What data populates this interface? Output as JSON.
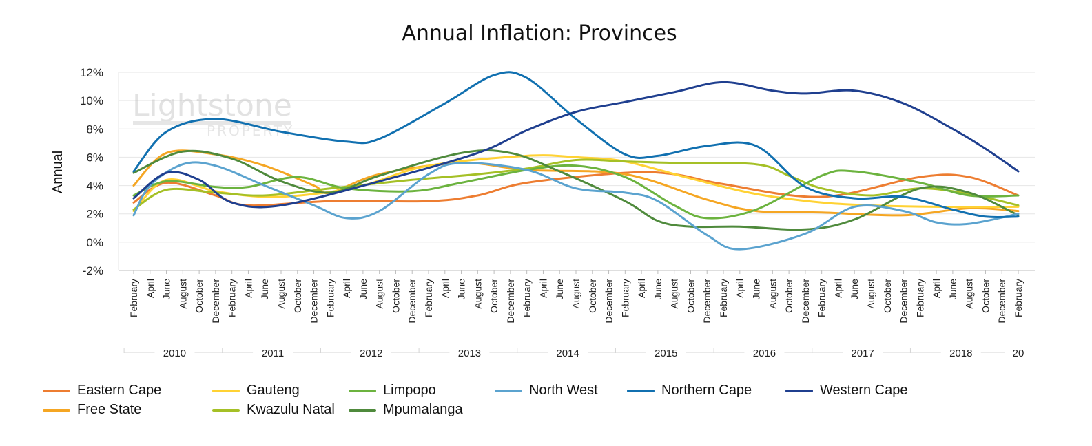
{
  "chart_data": {
    "type": "line",
    "title": "Annual Inflation: Provinces",
    "ylabel": "Annual",
    "xlabel": "",
    "ylim": [
      -2,
      12
    ],
    "y_ticks": [
      "12%",
      "10%",
      "8%",
      "6%",
      "4%",
      "2%",
      "0%",
      "-2%"
    ],
    "y_tick_values": [
      12,
      10,
      8,
      6,
      4,
      2,
      0,
      -2
    ],
    "grid": "horizontal",
    "legend_position": "bottom",
    "watermark": [
      "Lightstone",
      "PROPERTY"
    ],
    "x": [
      "February",
      "April",
      "June",
      "August",
      "October",
      "December",
      "February",
      "April",
      "June",
      "August",
      "October",
      "December",
      "February",
      "April",
      "June",
      "August",
      "October",
      "December",
      "February",
      "April",
      "June",
      "August",
      "October",
      "December",
      "February",
      "April",
      "June",
      "August",
      "October",
      "December",
      "February",
      "April",
      "June",
      "August",
      "October",
      "December",
      "February",
      "April",
      "June",
      "August",
      "October",
      "December",
      "February",
      "April",
      "June",
      "August",
      "October",
      "December",
      "February",
      "April",
      "June",
      "August",
      "October",
      "December",
      "February"
    ],
    "years": [
      {
        "label": "2010",
        "start": 0,
        "end": 5
      },
      {
        "label": "2011",
        "start": 6,
        "end": 11
      },
      {
        "label": "2012",
        "start": 12,
        "end": 17
      },
      {
        "label": "2013",
        "start": 18,
        "end": 23
      },
      {
        "label": "2014",
        "start": 24,
        "end": 29
      },
      {
        "label": "2015",
        "start": 30,
        "end": 35
      },
      {
        "label": "2016",
        "start": 36,
        "end": 41
      },
      {
        "label": "2017",
        "start": 42,
        "end": 47
      },
      {
        "label": "2018",
        "start": 48,
        "end": 53
      },
      {
        "label": "20",
        "start": 54,
        "end": 54
      }
    ],
    "series": [
      {
        "name": "Eastern Cape",
        "color": "#ED7D31",
        "points": [
          [
            0,
            2.8
          ],
          [
            2,
            4.2
          ],
          [
            5,
            3.3
          ],
          [
            7,
            2.6
          ],
          [
            12,
            2.9
          ],
          [
            18,
            2.9
          ],
          [
            21,
            3.3
          ],
          [
            24,
            4.2
          ],
          [
            30,
            4.9
          ],
          [
            33,
            4.8
          ],
          [
            36,
            4.1
          ],
          [
            42,
            3.2
          ],
          [
            48,
            4.6
          ],
          [
            51,
            4.6
          ],
          [
            54,
            3.3
          ]
        ]
      },
      {
        "name": "Free State",
        "color": "#F5A623",
        "points": [
          [
            0,
            4.0
          ],
          [
            2,
            6.3
          ],
          [
            5,
            6.2
          ],
          [
            8,
            5.4
          ],
          [
            11,
            4.0
          ],
          [
            12,
            3.5
          ],
          [
            15,
            4.8
          ],
          [
            20,
            5.6
          ],
          [
            24,
            5.1
          ],
          [
            30,
            4.8
          ],
          [
            35,
            3.0
          ],
          [
            38,
            2.2
          ],
          [
            42,
            2.1
          ],
          [
            47,
            1.9
          ],
          [
            51,
            2.4
          ],
          [
            54,
            2.2
          ]
        ]
      },
      {
        "name": "Gauteng",
        "color": "#FFD234",
        "points": [
          [
            0,
            2.2
          ],
          [
            2,
            4.4
          ],
          [
            5,
            3.6
          ],
          [
            8,
            3.2
          ],
          [
            11,
            3.4
          ],
          [
            14,
            4.0
          ],
          [
            18,
            5.4
          ],
          [
            24,
            6.1
          ],
          [
            27,
            6.0
          ],
          [
            30,
            5.7
          ],
          [
            34,
            4.5
          ],
          [
            38,
            3.4
          ],
          [
            42,
            2.8
          ],
          [
            45,
            2.6
          ],
          [
            49,
            2.5
          ],
          [
            54,
            2.5
          ]
        ]
      },
      {
        "name": "Kwazulu Natal",
        "color": "#A5C026",
        "points": [
          [
            0,
            2.3
          ],
          [
            2,
            3.7
          ],
          [
            5,
            3.5
          ],
          [
            8,
            3.3
          ],
          [
            12,
            3.8
          ],
          [
            17,
            4.4
          ],
          [
            21,
            4.8
          ],
          [
            24,
            5.2
          ],
          [
            27,
            5.8
          ],
          [
            30,
            5.7
          ],
          [
            33,
            5.6
          ],
          [
            38,
            5.5
          ],
          [
            40,
            4.7
          ],
          [
            42,
            3.8
          ],
          [
            45,
            3.3
          ],
          [
            48,
            3.8
          ],
          [
            51,
            3.4
          ],
          [
            54,
            2.6
          ]
        ]
      },
      {
        "name": "Limpopo",
        "color": "#6CB33F",
        "points": [
          [
            0,
            3.3
          ],
          [
            2,
            4.3
          ],
          [
            5,
            3.9
          ],
          [
            7,
            3.9
          ],
          [
            10,
            4.6
          ],
          [
            13,
            3.8
          ],
          [
            17,
            3.6
          ],
          [
            20,
            4.2
          ],
          [
            24,
            5.1
          ],
          [
            27,
            5.4
          ],
          [
            30,
            4.6
          ],
          [
            33,
            2.6
          ],
          [
            35,
            1.7
          ],
          [
            38,
            2.3
          ],
          [
            42,
            4.7
          ],
          [
            44,
            5.0
          ],
          [
            48,
            4.2
          ],
          [
            51,
            3.3
          ],
          [
            54,
            3.3
          ]
        ]
      },
      {
        "name": "Mpumalanga",
        "color": "#4F8A3C",
        "points": [
          [
            0,
            4.9
          ],
          [
            3,
            6.4
          ],
          [
            6,
            5.9
          ],
          [
            9,
            4.3
          ],
          [
            12,
            3.5
          ],
          [
            15,
            4.7
          ],
          [
            20,
            6.3
          ],
          [
            23,
            6.3
          ],
          [
            26,
            5.0
          ],
          [
            30,
            2.9
          ],
          [
            32,
            1.5
          ],
          [
            34,
            1.1
          ],
          [
            37,
            1.1
          ],
          [
            41,
            0.9
          ],
          [
            44,
            1.6
          ],
          [
            48,
            3.8
          ],
          [
            51,
            3.5
          ],
          [
            54,
            1.9
          ]
        ]
      },
      {
        "name": "North West",
        "color": "#5BA3CF",
        "points": [
          [
            0,
            1.9
          ],
          [
            1,
            4.0
          ],
          [
            3,
            5.5
          ],
          [
            5,
            5.4
          ],
          [
            8,
            4.0
          ],
          [
            11,
            2.6
          ],
          [
            13,
            1.7
          ],
          [
            15,
            2.2
          ],
          [
            18,
            4.8
          ],
          [
            20,
            5.6
          ],
          [
            24,
            5.1
          ],
          [
            27,
            3.8
          ],
          [
            30,
            3.5
          ],
          [
            32,
            2.9
          ],
          [
            35,
            0.5
          ],
          [
            37,
            -0.5
          ],
          [
            41,
            0.6
          ],
          [
            44,
            2.5
          ],
          [
            47,
            2.2
          ],
          [
            49,
            1.4
          ],
          [
            51,
            1.3
          ],
          [
            54,
            2.0
          ]
        ]
      },
      {
        "name": "Northern Cape",
        "color": "#1170B0",
        "points": [
          [
            0,
            5.0
          ],
          [
            2,
            7.8
          ],
          [
            5,
            8.7
          ],
          [
            9,
            7.8
          ],
          [
            13,
            7.1
          ],
          [
            15,
            7.3
          ],
          [
            19,
            9.8
          ],
          [
            22,
            11.8
          ],
          [
            24,
            11.6
          ],
          [
            27,
            8.7
          ],
          [
            30,
            6.2
          ],
          [
            32,
            6.1
          ],
          [
            35,
            6.8
          ],
          [
            38,
            6.8
          ],
          [
            41,
            3.9
          ],
          [
            44,
            3.1
          ],
          [
            47,
            3.2
          ],
          [
            50,
            2.3
          ],
          [
            52,
            1.8
          ],
          [
            54,
            1.8
          ]
        ]
      },
      {
        "name": "Western Cape",
        "color": "#1F3F8F",
        "points": [
          [
            0,
            3.1
          ],
          [
            2,
            4.9
          ],
          [
            4,
            4.4
          ],
          [
            6,
            2.8
          ],
          [
            9,
            2.6
          ],
          [
            15,
            4.3
          ],
          [
            21,
            6.3
          ],
          [
            24,
            7.9
          ],
          [
            27,
            9.2
          ],
          [
            30,
            9.9
          ],
          [
            33,
            10.6
          ],
          [
            36,
            11.3
          ],
          [
            39,
            10.7
          ],
          [
            41,
            10.5
          ],
          [
            44,
            10.7
          ],
          [
            47,
            9.8
          ],
          [
            50,
            8.0
          ],
          [
            52,
            6.6
          ],
          [
            54,
            5.0
          ]
        ]
      }
    ]
  }
}
